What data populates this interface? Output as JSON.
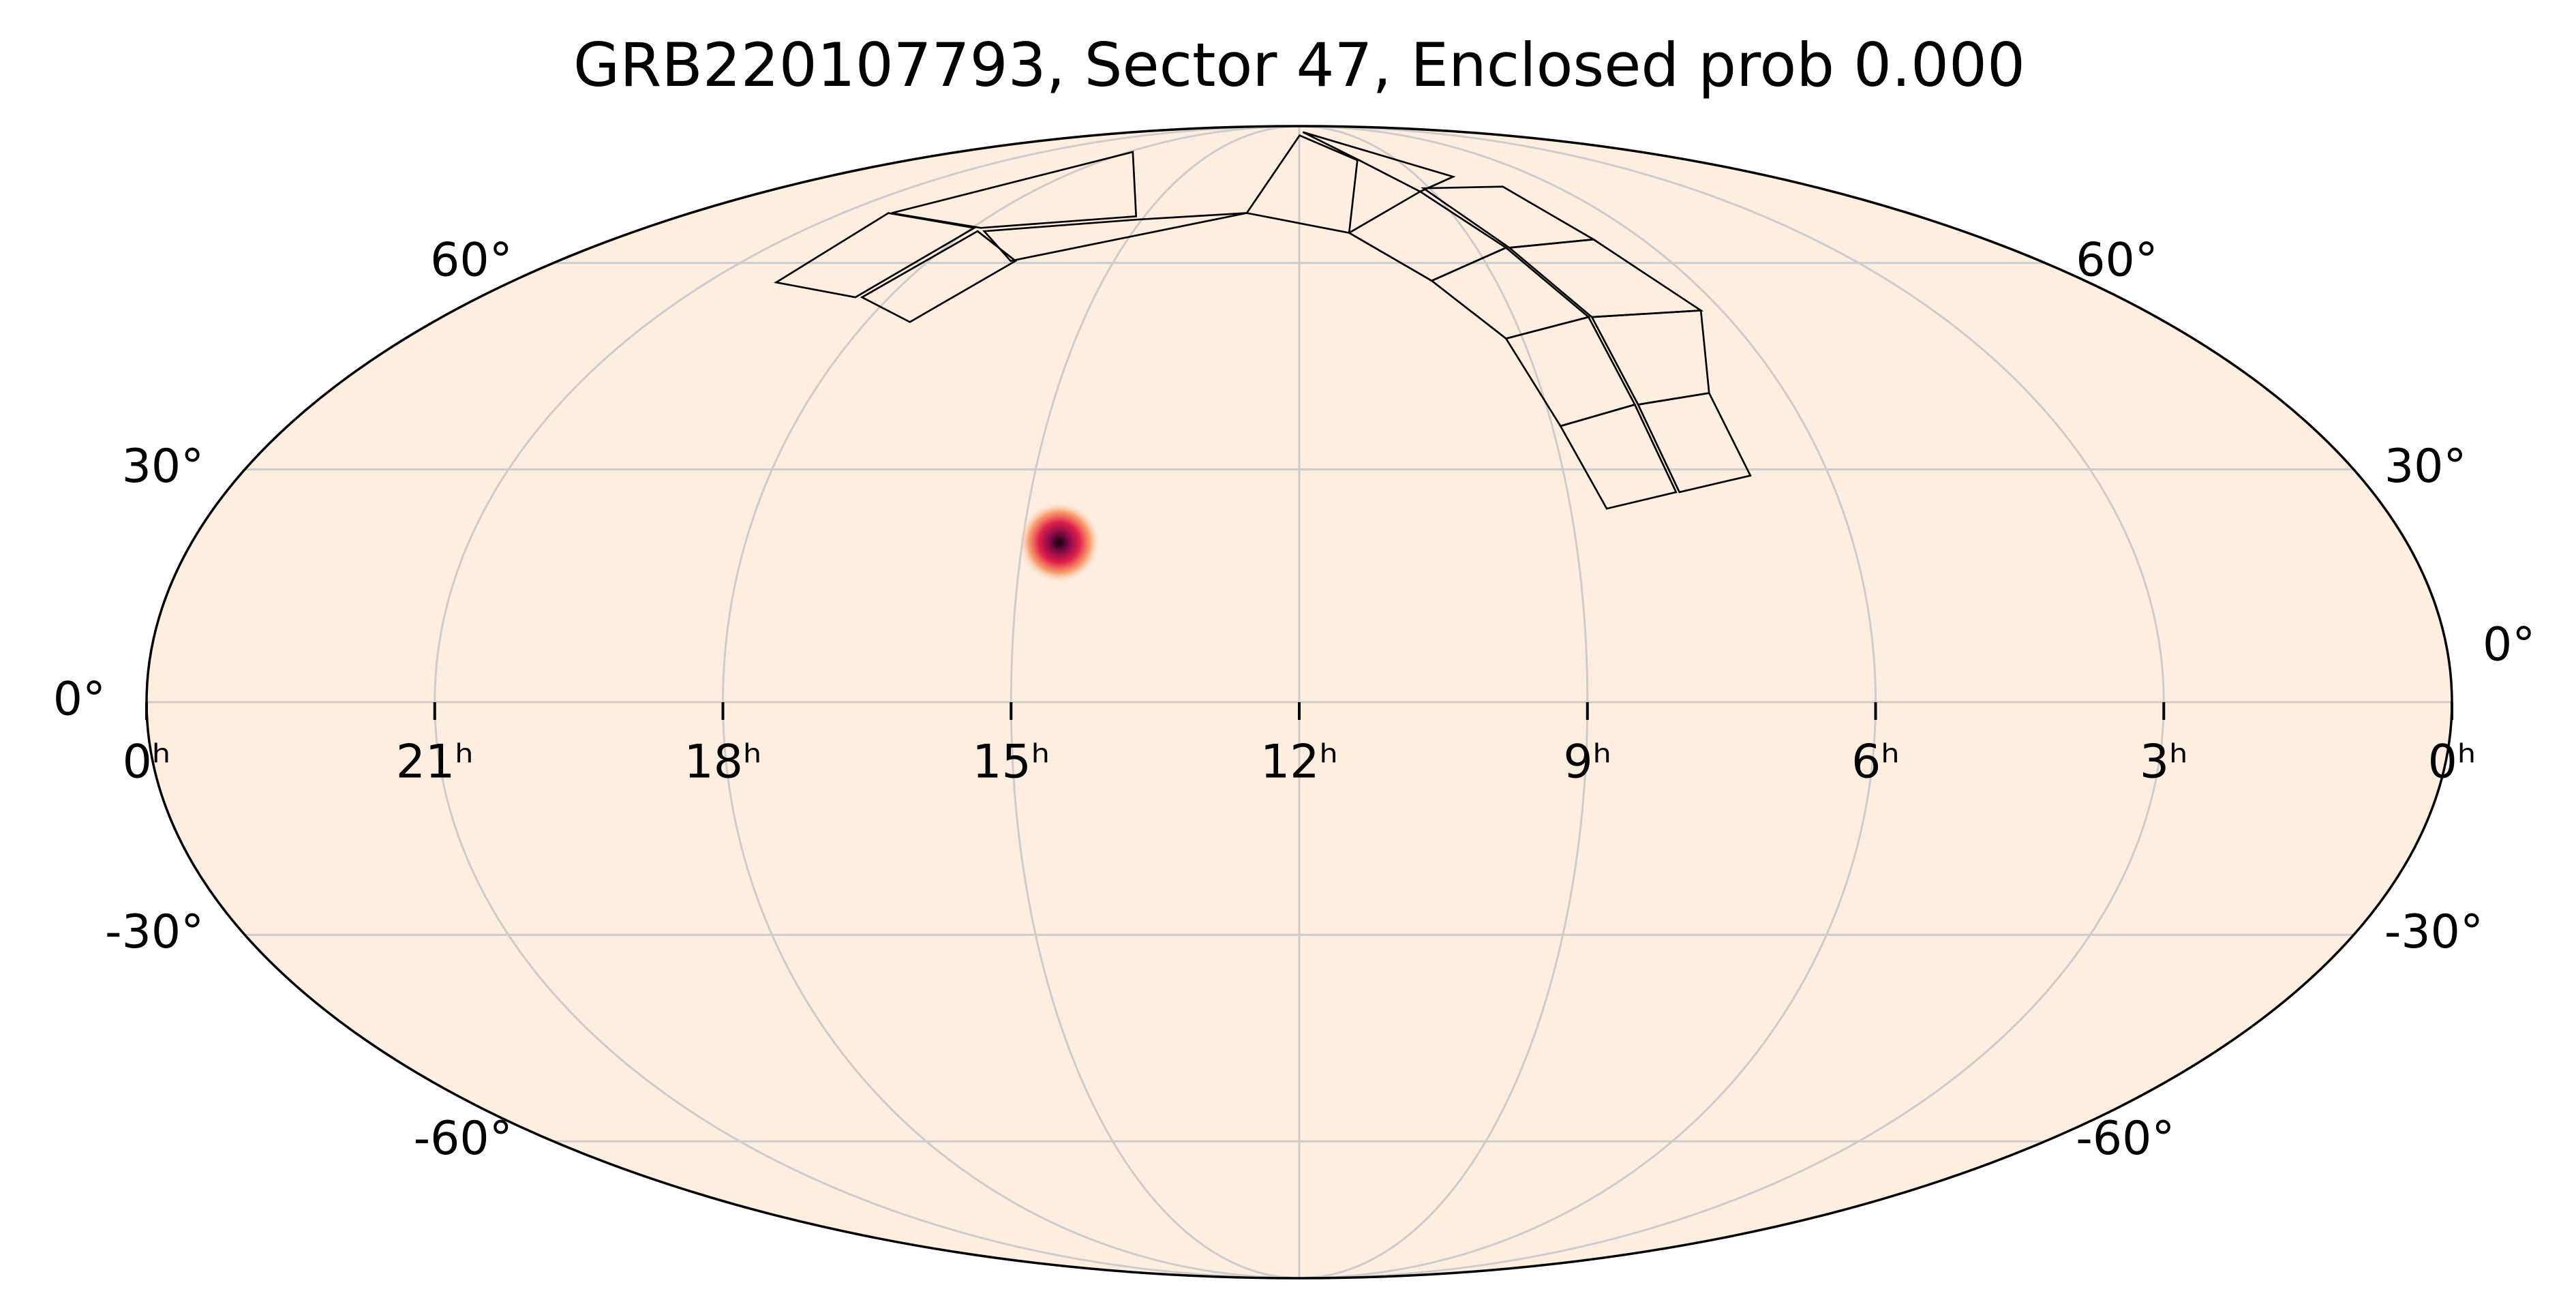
{
  "chart_data": {
    "type": "mollweide",
    "title": "GRB220107793, Sector 47, Enclosed prob 0.000",
    "xlim": [
      24,
      0
    ],
    "ylim": [
      -90,
      90
    ],
    "xticks": [
      {
        "value": 24,
        "label": "0ʰ"
      },
      {
        "value": 21,
        "label": "21ʰ"
      },
      {
        "value": 18,
        "label": "18ʰ"
      },
      {
        "value": 15,
        "label": "15ʰ"
      },
      {
        "value": 12,
        "label": "12ʰ"
      },
      {
        "value": 9,
        "label": "9ʰ"
      },
      {
        "value": 6,
        "label": "6ʰ"
      },
      {
        "value": 3,
        "label": "3ʰ"
      },
      {
        "value": 0,
        "label": "0ʰ"
      }
    ],
    "yticks": [
      {
        "value": -60,
        "label": "-60°"
      },
      {
        "value": -30,
        "label": "-30°"
      },
      {
        "value": 0,
        "label": "0°"
      },
      {
        "value": 30,
        "label": "30°"
      },
      {
        "value": 60,
        "label": "60°"
      }
    ],
    "grid": true,
    "background": "#fdeee0",
    "grid_color": "#cccccc",
    "x": [
      14.6
    ],
    "y": [
      20.4
    ]
  }
}
